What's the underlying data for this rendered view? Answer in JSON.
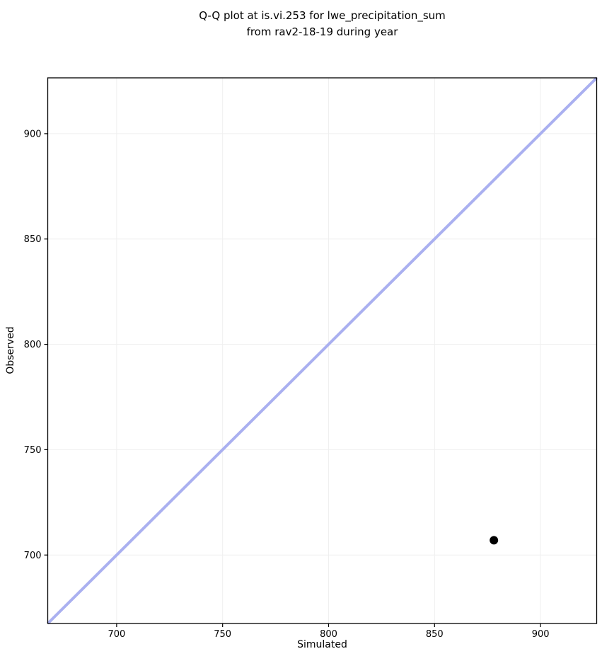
{
  "chart_data": {
    "type": "scatter",
    "title": "Q-Q plot at is.vi.253 for lwe_precipitation_sum from rav2-18-19 during year",
    "title_lines": [
      "Q-Q plot at is.vi.253 for lwe_precipitation_sum",
      "from rav2-18-19 during year"
    ],
    "xlabel": "Simulated",
    "ylabel": "Observed",
    "xlim": [
      667.5,
      926.5
    ],
    "ylim": [
      667.5,
      926.5
    ],
    "xticks": [
      700,
      750,
      800,
      850,
      900
    ],
    "yticks": [
      700,
      750,
      800,
      850,
      900
    ],
    "grid": true,
    "legend": false,
    "series": [
      {
        "name": "identity-line",
        "type": "line",
        "x": [
          667.5,
          926.5
        ],
        "y": [
          667.5,
          926.5
        ],
        "color": "#aab0f0",
        "width": 4
      },
      {
        "name": "quantile-points",
        "type": "scatter",
        "x": [
          878
        ],
        "y": [
          707
        ],
        "color": "#000000",
        "marker": "circle",
        "marker_radius": 6
      }
    ],
    "colors": {
      "grid": "#efefef",
      "spine": "#000000",
      "background": "#ffffff",
      "tick": "#000000",
      "text": "#000000"
    }
  }
}
